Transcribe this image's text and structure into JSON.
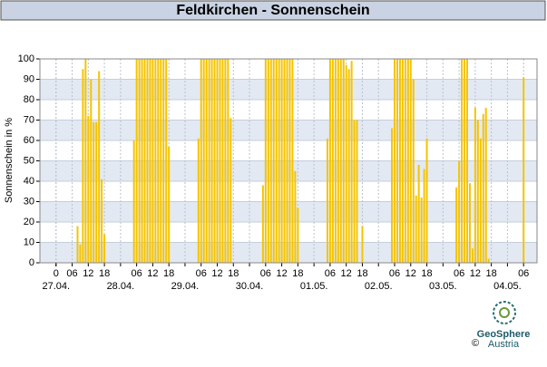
{
  "header": "Feldkirchen - Sonnenschein",
  "chart_data": {
    "type": "bar",
    "ylabel": "Sonnenschein in %",
    "color": "#f5c400",
    "x": [
      8,
      9,
      10,
      11,
      12,
      13,
      14,
      15,
      16,
      17,
      18,
      29,
      30,
      31,
      32,
      33,
      34,
      35,
      36,
      37,
      38,
      39,
      40,
      41,
      42,
      53,
      54,
      55,
      56,
      57,
      58,
      59,
      60,
      61,
      62,
      63,
      64,
      65,
      77,
      78,
      79,
      80,
      81,
      82,
      83,
      84,
      85,
      86,
      87,
      88,
      89,
      90,
      101,
      102,
      103,
      104,
      105,
      106,
      107,
      108,
      109,
      110,
      111,
      112,
      113,
      114,
      125,
      126,
      127,
      128,
      129,
      130,
      131,
      132,
      133,
      134,
      135,
      136,
      137,
      138,
      149,
      150,
      151,
      152,
      153,
      154,
      155,
      156,
      157,
      158,
      159,
      160,
      161,
      174
    ],
    "values": [
      18,
      9,
      95,
      100,
      72,
      90,
      69,
      69,
      94,
      41,
      14,
      60,
      100,
      100,
      100,
      100,
      100,
      100,
      100,
      100,
      100,
      100,
      100,
      100,
      57,
      61,
      100,
      100,
      100,
      100,
      100,
      100,
      100,
      100,
      100,
      100,
      100,
      71,
      38,
      100,
      100,
      100,
      100,
      100,
      100,
      100,
      100,
      100,
      100,
      100,
      45,
      27,
      61,
      100,
      100,
      100,
      100,
      100,
      100,
      97,
      95,
      99,
      70,
      70,
      0,
      18,
      66,
      100,
      100,
      100,
      100,
      100,
      100,
      100,
      90,
      33,
      48,
      32,
      46,
      61,
      37,
      50,
      100,
      100,
      100,
      39,
      7,
      76,
      70,
      61,
      73,
      76,
      2,
      91
    ],
    "xlim": [
      -6,
      179
    ],
    "xticks": [
      {
        "value": 0,
        "label": "0"
      },
      {
        "value": 6,
        "label": "06"
      },
      {
        "value": 12,
        "label": "12"
      },
      {
        "value": 18,
        "label": "18"
      },
      {
        "value": 30,
        "label": "06"
      },
      {
        "value": 36,
        "label": "12"
      },
      {
        "value": 42,
        "label": "18"
      },
      {
        "value": 54,
        "label": "06"
      },
      {
        "value": 60,
        "label": "12"
      },
      {
        "value": 66,
        "label": "18"
      },
      {
        "value": 78,
        "label": "06"
      },
      {
        "value": 84,
        "label": "12"
      },
      {
        "value": 90,
        "label": "18"
      },
      {
        "value": 102,
        "label": "06"
      },
      {
        "value": 108,
        "label": "12"
      },
      {
        "value": 114,
        "label": "18"
      },
      {
        "value": 126,
        "label": "06"
      },
      {
        "value": 132,
        "label": "12"
      },
      {
        "value": 138,
        "label": "18"
      },
      {
        "value": 150,
        "label": "06"
      },
      {
        "value": 156,
        "label": "12"
      },
      {
        "value": 162,
        "label": "18"
      },
      {
        "value": 174,
        "label": "06"
      }
    ],
    "day_ticks": [
      {
        "value": 0,
        "label": "27.04."
      },
      {
        "value": 24,
        "label": "28.04."
      },
      {
        "value": 48,
        "label": "29.04."
      },
      {
        "value": 72,
        "label": "30.04."
      },
      {
        "value": 96,
        "label": "01.05."
      },
      {
        "value": 120,
        "label": "02.05."
      },
      {
        "value": 144,
        "label": "03.05."
      },
      {
        "value": 168,
        "label": "04.05."
      }
    ],
    "ylim": [
      0,
      100
    ],
    "yticks": [
      0,
      10,
      20,
      30,
      40,
      50,
      60,
      70,
      80,
      90,
      100
    ],
    "grid": true
  },
  "logo": {
    "name": "GeoSphere",
    "sub": "Austria",
    "copyright": "©"
  }
}
